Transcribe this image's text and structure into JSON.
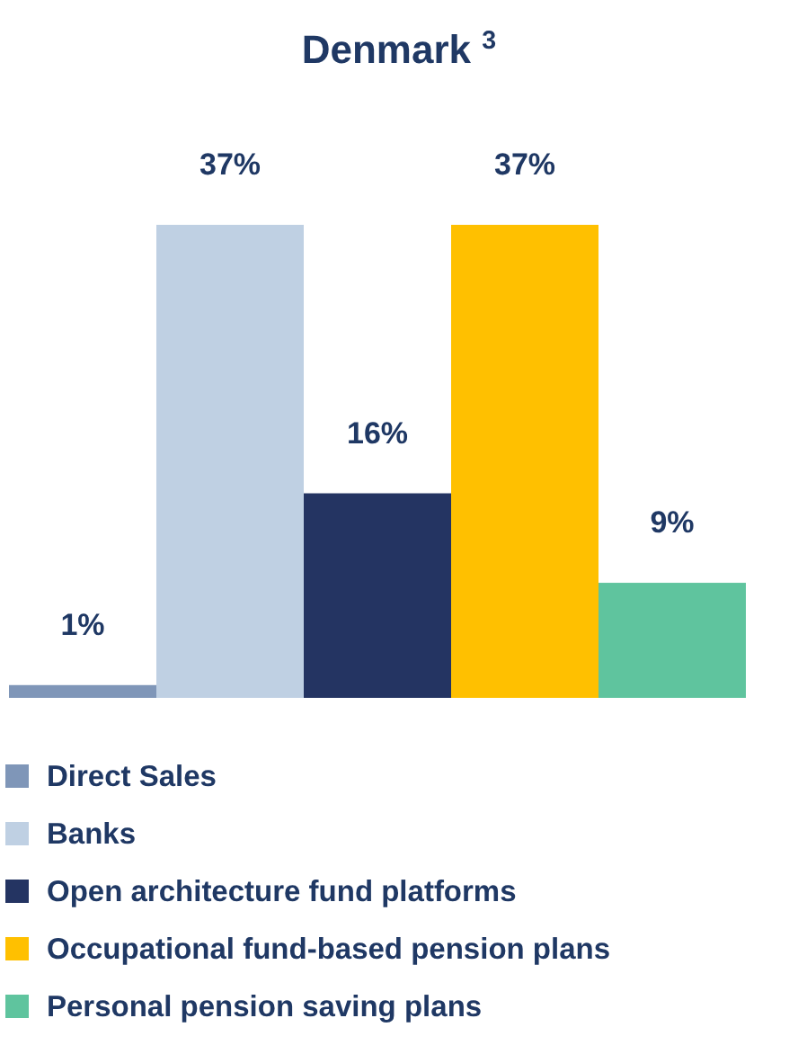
{
  "chart_data": {
    "type": "bar",
    "title": "Denmark $^{3}$",
    "categories": [
      null
    ],
    "legend": "bottom",
    "series": [
      {
        "name": "Direct Sales",
        "color": "#7f96b8",
        "values": [
          1
        ],
        "value_labels": [
          "1%"
        ]
      },
      {
        "name": "Banks",
        "color": "#bfd0e3",
        "values": [
          37
        ],
        "value_labels": [
          "37%"
        ]
      },
      {
        "name": "Open architecture fund platforms",
        "color": "#243462",
        "values": [
          16
        ],
        "value_labels": [
          "16%"
        ]
      },
      {
        "name": "Occupational fund-based pension plans",
        "color": "#ffc000",
        "values": [
          37
        ],
        "value_labels": [
          "37%"
        ]
      },
      {
        "name": "Personal pension saving plans",
        "color": "#5fc49e",
        "values": [
          9
        ],
        "value_labels": [
          "9%"
        ]
      }
    ]
  }
}
